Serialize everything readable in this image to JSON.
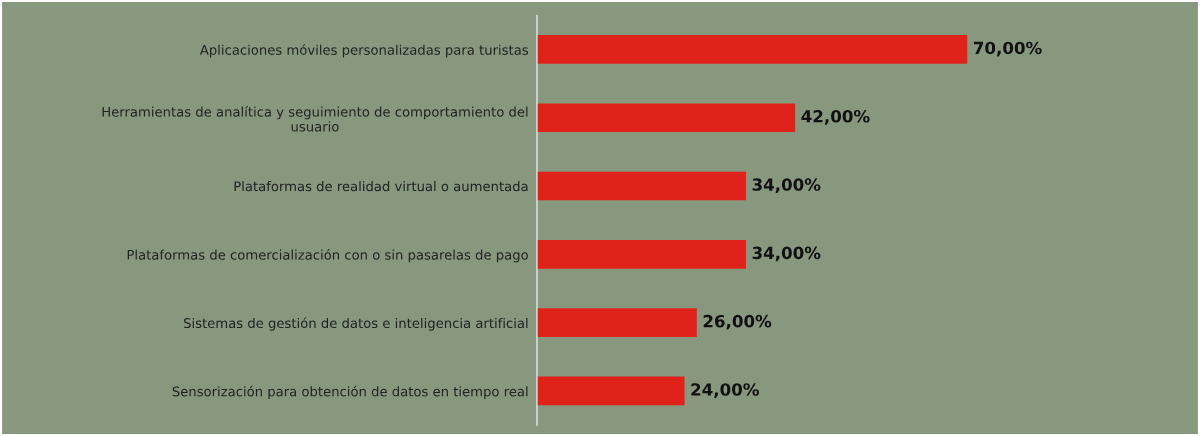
{
  "chart_data": {
    "type": "bar",
    "orientation": "horizontal",
    "categories": [
      "Aplicaciones móviles personalizadas para turistas",
      "Herramientas de analítica y seguimiento de comportamiento del\nusuario",
      "Plataformas de realidad virtual o aumentada",
      "Plataformas de comercialización con o sin pasarelas de pago",
      "Sistemas de gestión de datos e inteligencia artificial",
      "Sensorización para obtención de datos en tiempo real"
    ],
    "values": [
      70,
      42,
      34,
      34,
      26,
      24
    ],
    "value_labels": [
      "70,00%",
      "42,00%",
      "34,00%",
      "34,00%",
      "26,00%",
      "24,00%"
    ],
    "color": "#e0231a",
    "grid": false,
    "legend": false
  }
}
